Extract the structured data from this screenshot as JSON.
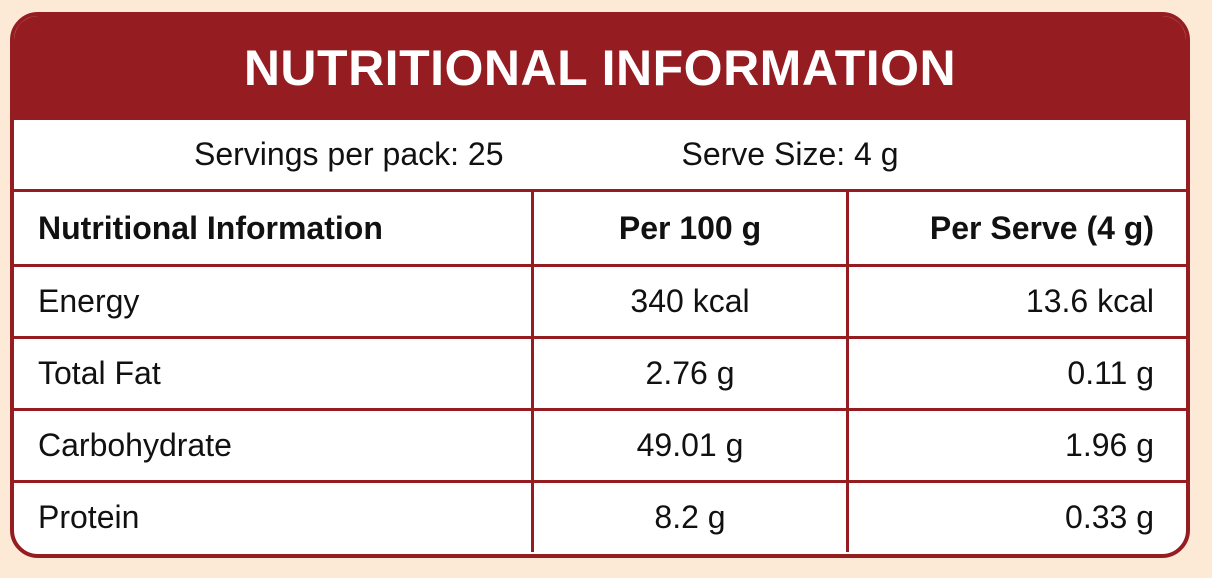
{
  "header": {
    "title": "NUTRITIONAL INFORMATION"
  },
  "servings": {
    "per_pack": "Servings per pack: 25",
    "serve_size": "Serve Size: 4 g"
  },
  "table": {
    "columns": [
      "Nutritional Information",
      "Per 100 g",
      "Per Serve (4 g)"
    ],
    "rows": [
      [
        "Energy",
        "340 kcal",
        "13.6 kcal"
      ],
      [
        "Total Fat",
        "2.76 g",
        "0.11 g"
      ],
      [
        "Carbohydrate",
        "49.01 g",
        "1.96 g"
      ],
      [
        "Protein",
        "8.2 g",
        "0.33 g"
      ]
    ]
  }
}
